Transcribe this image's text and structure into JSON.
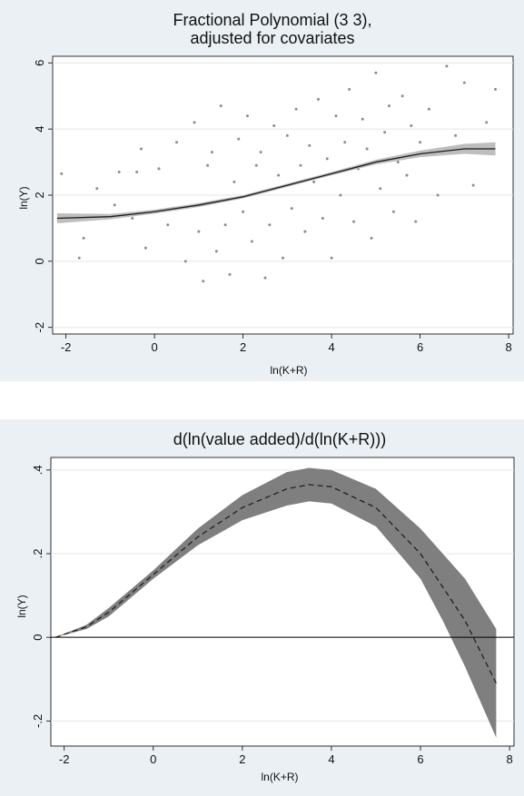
{
  "chart_data": [
    {
      "type": "scatter",
      "title": "Fractional Polynomial (3 3),",
      "subtitle": "adjusted for covariates",
      "xlabel": "ln(K+R)",
      "ylabel": "ln(Y)",
      "xlim": [
        -2.3,
        8.1
      ],
      "ylim": [
        -2.2,
        6.2
      ],
      "xticks": [
        "-2",
        "0",
        "2",
        "4",
        "6",
        "8"
      ],
      "yticks": [
        "-2",
        "0",
        "2",
        "4",
        "6"
      ],
      "grid": true,
      "colors": {
        "background": "#eaf0f4",
        "plot": "#ffffff",
        "points": "#8c8c8c",
        "band": "#b3b3b3",
        "fit": "#1a1a1a"
      },
      "fit_line": {
        "x": [
          -2.2,
          -1,
          0,
          1,
          2,
          3,
          4,
          5,
          6,
          7,
          7.7
        ],
        "y": [
          1.3,
          1.35,
          1.5,
          1.7,
          1.95,
          2.3,
          2.65,
          3.0,
          3.25,
          3.4,
          3.4
        ]
      },
      "fit_band": {
        "x": [
          -2.2,
          -1,
          0,
          1,
          2,
          3,
          4,
          5,
          6,
          7,
          7.7
        ],
        "lower": [
          1.15,
          1.27,
          1.44,
          1.64,
          1.9,
          2.25,
          2.6,
          2.93,
          3.15,
          3.25,
          3.2
        ],
        "upper": [
          1.45,
          1.43,
          1.56,
          1.76,
          2.0,
          2.35,
          2.7,
          3.07,
          3.35,
          3.55,
          3.6
        ]
      },
      "scatter_sample": {
        "x": [
          -2.1,
          -1.7,
          -1.6,
          -1.3,
          -0.9,
          -0.8,
          -0.5,
          -0.4,
          -0.3,
          -0.2,
          0.1,
          0.3,
          0.5,
          0.7,
          0.9,
          1.0,
          1.1,
          1.2,
          1.3,
          1.4,
          1.5,
          1.6,
          1.7,
          1.8,
          1.9,
          2.0,
          2.1,
          2.2,
          2.3,
          2.4,
          2.5,
          2.6,
          2.7,
          2.8,
          2.9,
          3.0,
          3.1,
          3.2,
          3.3,
          3.4,
          3.5,
          3.6,
          3.7,
          3.8,
          3.9,
          4.0,
          4.1,
          4.2,
          4.3,
          4.4,
          4.5,
          4.6,
          4.7,
          4.8,
          4.9,
          5.0,
          5.1,
          5.2,
          5.3,
          5.4,
          5.5,
          5.6,
          5.7,
          5.8,
          5.9,
          6.0,
          6.2,
          6.4,
          6.6,
          6.8,
          7.0,
          7.2,
          7.5,
          7.7
        ],
        "y": [
          2.65,
          0.1,
          0.7,
          2.2,
          1.7,
          2.7,
          1.3,
          2.7,
          3.4,
          0.4,
          2.8,
          1.1,
          3.6,
          0.0,
          4.2,
          0.9,
          -0.6,
          2.9,
          3.3,
          0.3,
          4.7,
          1.1,
          -0.4,
          2.4,
          3.7,
          1.5,
          4.4,
          0.6,
          2.9,
          3.3,
          -0.5,
          1.1,
          4.1,
          2.6,
          0.1,
          3.8,
          1.6,
          4.6,
          2.9,
          0.9,
          3.5,
          2.4,
          4.9,
          1.3,
          3.1,
          0.1,
          4.4,
          2.0,
          3.6,
          5.2,
          1.2,
          2.8,
          4.3,
          3.4,
          0.7,
          5.7,
          2.2,
          3.9,
          4.7,
          1.5,
          3.0,
          5.0,
          2.6,
          4.1,
          1.2,
          3.6,
          4.6,
          2.0,
          5.9,
          3.8,
          5.4,
          2.3,
          4.2,
          5.2
        ]
      }
    },
    {
      "type": "line",
      "title": "d(ln(value added)/d(ln(K+R)))",
      "xlabel": "ln(K+R)",
      "ylabel": "ln(Y)",
      "xlim": [
        -2.3,
        8.1
      ],
      "ylim": [
        -0.26,
        0.43
      ],
      "xticks": [
        "-2",
        "0",
        "2",
        "4",
        "6",
        "8"
      ],
      "yticks": [
        "-.2",
        "0",
        ".2",
        ".4"
      ],
      "grid": true,
      "colors": {
        "background": "#eaf0f4",
        "plot": "#ffffff",
        "band": "#7f7f7f",
        "line": "#1a1a1a",
        "zero_line": "#000000"
      },
      "series": [
        {
          "x": [
            -2.2,
            -1.5,
            -1,
            0,
            1,
            2,
            3,
            3.5,
            4,
            5,
            6,
            6.5,
            7,
            7.7
          ],
          "values": [
            0.0,
            0.025,
            0.06,
            0.15,
            0.24,
            0.31,
            0.355,
            0.365,
            0.36,
            0.31,
            0.2,
            0.12,
            0.04,
            -0.11
          ]
        }
      ],
      "band": {
        "x": [
          -2.2,
          -1.5,
          -1,
          0,
          1,
          2,
          3,
          3.5,
          4,
          5,
          6,
          6.5,
          7,
          7.7
        ],
        "lower": [
          0.0,
          0.02,
          0.05,
          0.14,
          0.22,
          0.28,
          0.315,
          0.325,
          0.32,
          0.265,
          0.14,
          0.04,
          -0.07,
          -0.24
        ],
        "upper": [
          0.0,
          0.03,
          0.07,
          0.16,
          0.26,
          0.34,
          0.395,
          0.405,
          0.4,
          0.355,
          0.26,
          0.2,
          0.14,
          0.02
        ]
      }
    }
  ]
}
